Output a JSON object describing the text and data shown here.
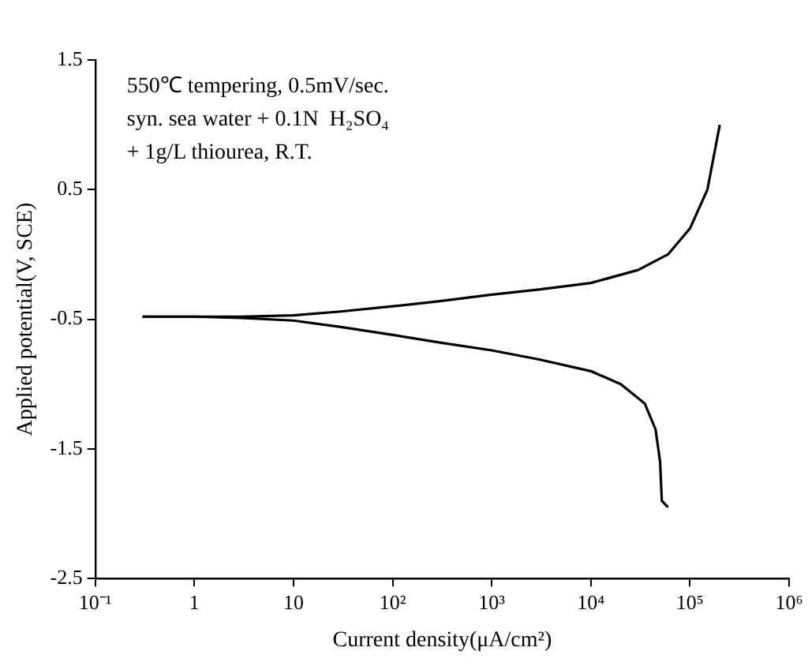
{
  "chart_data": {
    "type": "line",
    "xlabel": "Current density(μA/cm²)",
    "ylabel": "Applied potential(V, SCE)",
    "annotations": [
      "550℃ tempering, 0.5mV/sec.",
      "syn. sea water + 0.1N  H₂SO₄",
      "+ 1g/L thiourea, R.T."
    ],
    "log": "x",
    "grid": false,
    "legend": false,
    "marker": "none",
    "line_style": "solid",
    "xlim": [
      0.1,
      1000000
    ],
    "xticks": [
      {
        "value": 0.1,
        "label": "10⁻¹"
      },
      1,
      10,
      {
        "value": 100,
        "label": "10²"
      },
      {
        "value": 1000,
        "label": "10³"
      },
      {
        "value": 10000,
        "label": "10⁴"
      },
      {
        "value": 100000,
        "label": "10⁵"
      },
      {
        "value": 1000000,
        "label": "10⁶"
      }
    ],
    "ylim": [
      -2.5,
      1.5
    ],
    "yticks": [
      -2.5,
      -1.5,
      -0.5,
      0.5,
      1.5
    ],
    "series": [
      {
        "color": "#000000",
        "x": [
          0.3,
          1,
          3,
          10,
          30,
          100,
          300,
          1000,
          3000,
          10000,
          30000,
          60000,
          100000,
          150000,
          200000
        ],
        "values": [
          -0.48,
          -0.48,
          -0.48,
          -0.47,
          -0.44,
          -0.4,
          -0.36,
          -0.31,
          -0.27,
          -0.22,
          -0.12,
          0,
          0.2,
          0.5,
          1.0
        ]
      },
      {
        "color": "#000000",
        "x": [
          0.3,
          1,
          3,
          10,
          30,
          100,
          300,
          1000,
          3000,
          10000,
          20000,
          35000,
          45000,
          50000,
          52000,
          60000
        ],
        "values": [
          -0.48,
          -0.48,
          -0.49,
          -0.51,
          -0.56,
          -0.62,
          -0.68,
          -0.74,
          -0.81,
          -0.9,
          -1.0,
          -1.15,
          -1.35,
          -1.6,
          -1.9,
          -1.95
        ]
      }
    ]
  }
}
